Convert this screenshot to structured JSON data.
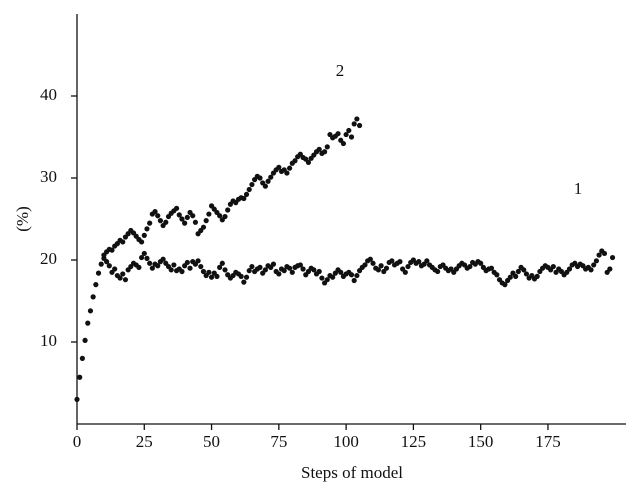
{
  "chart_data": {
    "type": "scatter",
    "x_label": "Steps of model",
    "y_label": "(%)",
    "x": [
      0,
      1,
      2,
      3,
      4,
      5,
      6,
      7,
      8,
      9,
      10,
      11,
      12,
      13,
      14,
      15,
      16,
      17,
      18,
      19,
      20,
      21,
      22,
      23,
      24,
      25,
      26,
      27,
      28,
      29,
      30,
      31,
      32,
      33,
      34,
      35,
      36,
      37,
      38,
      39,
      40,
      41,
      42,
      43,
      44,
      45,
      46,
      47,
      48,
      49,
      50,
      51,
      52,
      53,
      54,
      55,
      56,
      57,
      58,
      59,
      60,
      61,
      62,
      63,
      64,
      65,
      66,
      67,
      68,
      69,
      70,
      71,
      72,
      73,
      74,
      75,
      76,
      77,
      78,
      79,
      80,
      81,
      82,
      83,
      84,
      85,
      86,
      87,
      88,
      89,
      90,
      91,
      92,
      93,
      94,
      95,
      96,
      97,
      98,
      99,
      100,
      101,
      102,
      103,
      104,
      105,
      106,
      107,
      108,
      109,
      110,
      111,
      112,
      113,
      114,
      115,
      116,
      117,
      118,
      119,
      120,
      121,
      122,
      123,
      124,
      125,
      126,
      127,
      128,
      129,
      130,
      131,
      132,
      133,
      134,
      135,
      136,
      137,
      138,
      139,
      140,
      141,
      142,
      143,
      144,
      145,
      146,
      147,
      148,
      149,
      150,
      151,
      152,
      153,
      154,
      155,
      156,
      157,
      158,
      159,
      160,
      161,
      162,
      163,
      164,
      165,
      166,
      167,
      168,
      169,
      170,
      171,
      172,
      173,
      174,
      175,
      176,
      177,
      178,
      179,
      180,
      181,
      182,
      183,
      184,
      185,
      186,
      187,
      188,
      189,
      190,
      191,
      192,
      193,
      194,
      195,
      196,
      197,
      198,
      199
    ],
    "series": [
      {
        "name": "1",
        "color": "#111111",
        "values": [
          3,
          5.7,
          8,
          10.2,
          12.3,
          13.8,
          15.5,
          17,
          18.4,
          19.5,
          20.2,
          19.8,
          19.3,
          18.5,
          18.9,
          18.1,
          17.8,
          18.3,
          17.6,
          18.8,
          19.2,
          19.6,
          19.4,
          19.1,
          20.3,
          20.8,
          20.2,
          19.6,
          19.0,
          19.5,
          19.3,
          19.8,
          20.1,
          19.6,
          19.2,
          18.8,
          19.4,
          18.7,
          18.9,
          18.6,
          19.3,
          19.7,
          19.0,
          19.8,
          19.5,
          19.9,
          19.2,
          18.6,
          18.1,
          18.5,
          17.9,
          18.4,
          18.0,
          19.1,
          19.6,
          18.8,
          18.2,
          17.8,
          18.1,
          18.5,
          18.3,
          18.0,
          17.3,
          17.9,
          18.7,
          19.2,
          18.6,
          18.9,
          19.1,
          18.4,
          18.8,
          19.3,
          19.1,
          19.5,
          18.6,
          18.3,
          18.9,
          18.7,
          19.2,
          19.0,
          18.5,
          19.1,
          19.3,
          19.4,
          18.9,
          18.2,
          18.6,
          19.0,
          18.8,
          18.3,
          18.6,
          17.8,
          17.2,
          17.6,
          18.1,
          17.9,
          18.4,
          18.8,
          18.5,
          18.0,
          18.3,
          18.5,
          18.2,
          17.5,
          18.1,
          18.7,
          19.1,
          19.4,
          19.9,
          20.1,
          19.6,
          19.0,
          18.8,
          19.3,
          18.6,
          19.0,
          19.7,
          19.9,
          19.4,
          19.6,
          19.8,
          18.9,
          18.5,
          19.2,
          19.7,
          20.0,
          19.6,
          19.8,
          19.3,
          19.5,
          19.9,
          19.4,
          19.1,
          18.8,
          18.6,
          19.2,
          19.4,
          19.0,
          18.7,
          18.9,
          18.5,
          18.9,
          19.3,
          19.6,
          19.4,
          19.0,
          19.2,
          19.7,
          19.5,
          19.8,
          19.6,
          19.1,
          18.7,
          18.9,
          19.0,
          18.5,
          18.2,
          17.6,
          17.2,
          17.0,
          17.5,
          17.9,
          18.4,
          18.0,
          18.6,
          19.1,
          18.8,
          18.3,
          17.8,
          18.1,
          17.7,
          18.0,
          18.6,
          19.0,
          19.3,
          19.1,
          18.8,
          19.2,
          18.5,
          18.9,
          18.6,
          18.2,
          18.5,
          18.9,
          19.4,
          19.6,
          19.2,
          19.5,
          19.3,
          18.9,
          19.1,
          18.8,
          19.4,
          19.9,
          20.6,
          21.1,
          20.8,
          18.5,
          18.9,
          20.3
        ]
      },
      {
        "name": "2",
        "color": "#111111",
        "values": [
          null,
          null,
          null,
          null,
          null,
          null,
          null,
          null,
          null,
          null,
          20.6,
          21.0,
          21.3,
          21.2,
          21.7,
          22.0,
          22.4,
          22.2,
          22.8,
          23.2,
          23.6,
          23.3,
          22.9,
          22.5,
          22.2,
          23.0,
          23.8,
          24.5,
          25.6,
          25.9,
          25.4,
          24.8,
          24.2,
          24.6,
          25.3,
          25.7,
          26.0,
          26.3,
          25.5,
          25.0,
          24.5,
          25.2,
          25.8,
          25.4,
          24.6,
          23.2,
          23.6,
          24.0,
          24.8,
          25.6,
          26.6,
          26.2,
          25.8,
          25.4,
          24.9,
          25.3,
          26.1,
          26.8,
          27.2,
          27.0,
          27.4,
          27.6,
          27.5,
          28.0,
          28.6,
          29.2,
          29.8,
          30.2,
          30.0,
          29.4,
          29.0,
          29.6,
          30.1,
          30.6,
          31.0,
          31.3,
          30.8,
          31.0,
          30.6,
          31.2,
          31.8,
          32.1,
          32.6,
          32.9,
          32.5,
          32.3,
          31.9,
          32.4,
          32.8,
          33.2,
          33.5,
          33.0,
          33.2,
          33.8,
          35.3,
          34.9,
          35.1,
          35.4,
          34.6,
          34.2,
          35.3,
          35.8,
          35.0,
          36.6,
          37.2,
          36.4,
          null,
          null,
          null,
          null,
          null,
          null,
          null,
          null,
          null,
          null,
          null,
          null,
          null,
          null,
          null,
          null,
          null,
          null,
          null,
          null,
          null,
          null,
          null,
          null,
          null,
          null,
          null,
          null,
          null,
          null,
          null,
          null,
          null,
          null,
          null,
          null,
          null,
          null,
          null,
          null,
          null,
          null,
          null,
          null,
          null,
          null,
          null,
          null,
          null,
          null,
          null,
          null,
          null,
          null,
          null,
          null,
          null,
          null,
          null,
          null,
          null,
          null,
          null,
          null,
          null,
          null,
          null,
          null,
          null,
          null,
          null,
          null,
          null,
          null,
          null,
          null,
          null,
          null,
          null,
          null,
          null,
          null,
          null,
          null,
          null,
          null,
          null,
          null,
          null,
          null,
          null,
          null,
          null,
          null
        ]
      }
    ],
    "xlim": [
      0,
      204
    ],
    "ylim": [
      0,
      50
    ],
    "xticks": [
      0,
      25,
      50,
      75,
      100,
      125,
      150,
      175
    ],
    "yticks": [
      10,
      20,
      30,
      40
    ]
  }
}
